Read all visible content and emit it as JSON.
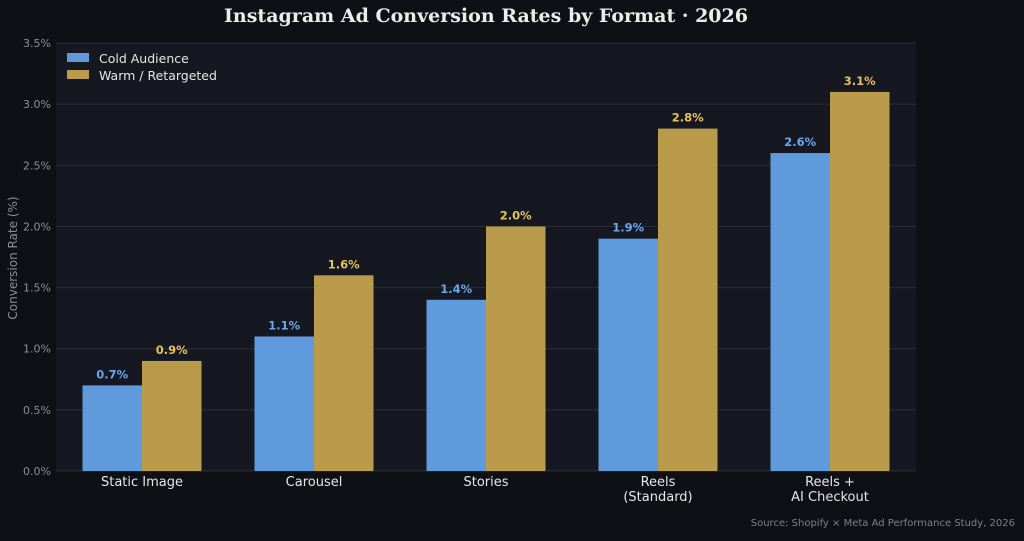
{
  "chart_data": {
    "type": "bar",
    "title": "Instagram Ad Conversion Rates by Format  ·  2026",
    "xlabel": "",
    "ylabel": "Conversion Rate (%)",
    "ylim": [
      0,
      3.5
    ],
    "yticks": [
      "0.0%",
      "0.5%",
      "1.0%",
      "1.5%",
      "2.0%",
      "2.5%",
      "3.0%",
      "3.5%"
    ],
    "ytick_values": [
      0,
      0.5,
      1.0,
      1.5,
      2.0,
      2.5,
      3.0,
      3.5
    ],
    "categories": [
      [
        "Static Image"
      ],
      [
        "Carousel"
      ],
      [
        "Stories"
      ],
      [
        "Reels",
        "(Standard)"
      ],
      [
        "Reels +",
        "AI Checkout"
      ]
    ],
    "series": [
      {
        "name": "Cold Audience",
        "color": "#5f9bdc",
        "label_color": "#6aa8ee",
        "values": [
          0.7,
          1.1,
          1.4,
          1.9,
          2.6
        ],
        "labels": [
          "0.7%",
          "1.1%",
          "1.4%",
          "1.9%",
          "2.6%"
        ]
      },
      {
        "name": "Warm / Retargeted",
        "color": "#b99b4b",
        "label_color": "#e8c15a",
        "values": [
          0.9,
          1.6,
          2.0,
          2.8,
          3.1
        ],
        "labels": [
          "0.9%",
          "1.6%",
          "2.0%",
          "2.8%",
          "3.1%"
        ]
      }
    ],
    "grid": true,
    "legend_position": "top-left",
    "source": "Source: Shopify × Meta Ad Performance Study, 2026",
    "colors": {
      "background": "#0e1015",
      "plot_background": "#151821",
      "grid": "#2a2e38"
    }
  }
}
